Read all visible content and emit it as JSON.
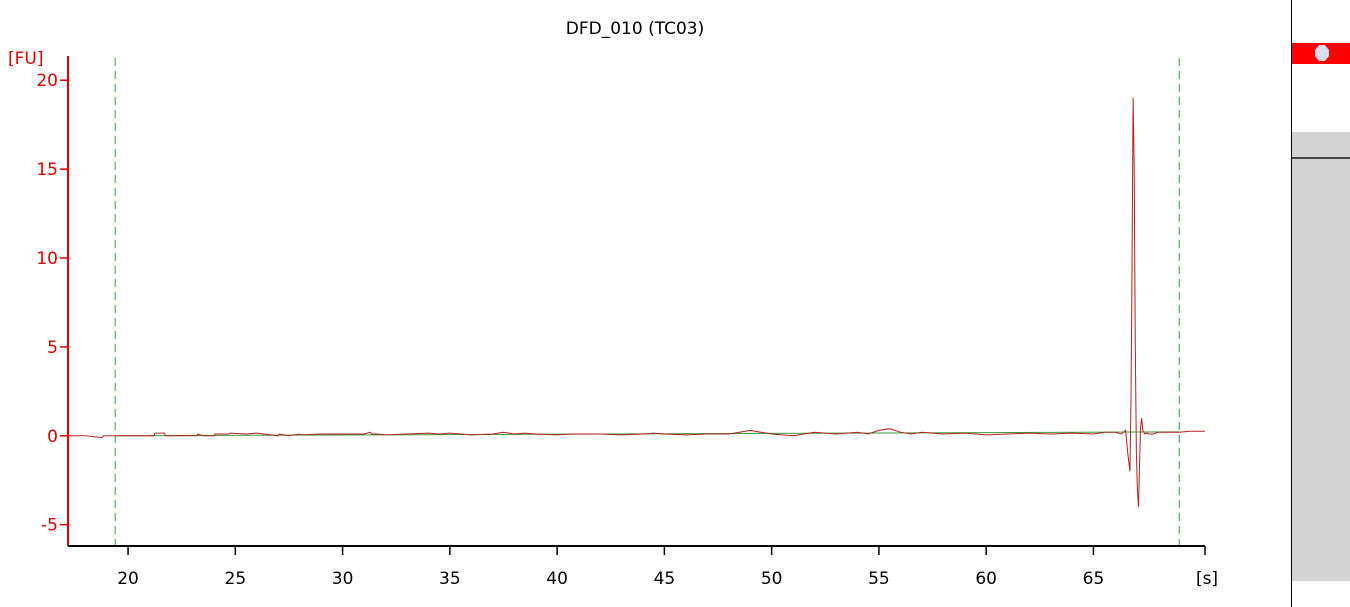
{
  "chart_data": {
    "type": "line",
    "title": "DFD_010 (TC03)",
    "xunit": "[s]",
    "yunit": "[FU]",
    "xlim": [
      17.2,
      70.2
    ],
    "ylim": [
      -6.2,
      20.8
    ],
    "xticks": [
      20,
      25,
      30,
      35,
      40,
      45,
      50,
      55,
      60,
      65
    ],
    "yticks": [
      -5,
      0,
      5,
      10,
      15,
      20
    ],
    "cursors": [
      19.4,
      69.0
    ],
    "colors": {
      "signal": "#b22222",
      "reference": "#3a9a3a",
      "cursor": "#3a9a3a",
      "yaxis": "#e00000",
      "xaxis": "#000000"
    },
    "series": [
      {
        "color": "#3a9a3a",
        "x": [
          19.4,
          69.0
        ],
        "y": [
          0.0,
          0.22
        ]
      },
      {
        "color": "#b22222",
        "x": [
          17.2,
          18.0,
          18.8,
          18.85,
          19.4,
          21.2,
          21.25,
          21.7,
          21.75,
          23.2,
          23.25,
          23.5,
          24.0,
          24.05,
          24.7,
          24.75,
          25.5,
          26.0,
          27.0,
          27.05,
          27.5,
          28.0,
          28.05,
          29.0,
          30.0,
          31.0,
          31.3,
          31.35,
          31.6,
          32.0,
          33.0,
          34.0,
          34.5,
          35.0,
          36.0,
          37.0,
          37.5,
          38.0,
          38.5,
          39.0,
          40.0,
          40.7,
          42.0,
          43.0,
          44.0,
          44.5,
          45.0,
          46.0,
          47.0,
          48.0,
          48.5,
          49.0,
          49.5,
          50.0,
          51.0,
          51.5,
          52.0,
          53.0,
          54.0,
          54.5,
          55.0,
          55.5,
          56.0,
          56.5,
          57.0,
          58.0,
          59.0,
          60.0,
          61.0,
          62.0,
          63.0,
          64.0,
          65.0,
          65.5,
          66.0,
          66.3,
          66.5,
          66.6,
          66.7,
          66.75,
          66.8,
          66.85,
          66.9,
          66.95,
          67.0,
          67.05,
          67.1,
          67.15,
          67.2,
          67.25,
          67.3,
          67.35,
          67.4,
          67.5,
          67.6,
          67.8,
          68.0,
          68.5,
          69.0,
          69.5,
          70.2
        ],
        "y": [
          0.0,
          0.0,
          -0.1,
          0.0,
          0.0,
          0.0,
          0.15,
          0.15,
          0.0,
          0.0,
          0.1,
          0.0,
          0.0,
          0.1,
          0.1,
          0.15,
          0.1,
          0.15,
          0.0,
          0.1,
          0.0,
          0.1,
          0.05,
          0.1,
          0.1,
          0.1,
          0.2,
          0.1,
          0.1,
          0.05,
          0.1,
          0.15,
          0.1,
          0.15,
          0.05,
          0.1,
          0.2,
          0.1,
          0.15,
          0.1,
          0.05,
          0.1,
          0.1,
          0.05,
          0.1,
          0.15,
          0.1,
          0.05,
          0.1,
          0.1,
          0.2,
          0.3,
          0.2,
          0.1,
          0.0,
          0.1,
          0.2,
          0.1,
          0.2,
          0.1,
          0.3,
          0.4,
          0.2,
          0.1,
          0.2,
          0.1,
          0.15,
          0.05,
          0.1,
          0.15,
          0.1,
          0.15,
          0.1,
          0.2,
          0.2,
          0.1,
          0.3,
          -1.0,
          -2.0,
          2.0,
          10.0,
          19.0,
          15.0,
          5.0,
          -1.0,
          -3.0,
          -4.0,
          -1.5,
          0.5,
          1.0,
          0.3,
          0.2,
          0.1,
          0.15,
          0.1,
          0.1,
          0.2,
          0.2,
          0.2,
          0.25,
          0.25
        ]
      }
    ]
  },
  "side_panel": {
    "channel_tab_color": "#ff0000",
    "channel_tab_icon": "channel-indicator-icon",
    "scroll_track_color": "#d3d3d3"
  }
}
